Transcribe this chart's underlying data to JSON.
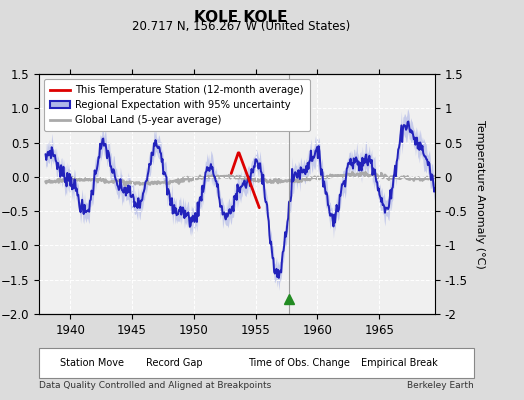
{
  "title": "KOLE KOLE",
  "subtitle": "20.717 N, 156.267 W (United States)",
  "xlabel_bottom": "Data Quality Controlled and Aligned at Breakpoints",
  "xlabel_right": "Berkeley Earth",
  "ylabel": "Temperature Anomaly (°C)",
  "xlim": [
    1937.5,
    1969.5
  ],
  "ylim": [
    -2.0,
    1.5
  ],
  "yticks": [
    -2.0,
    -1.5,
    -1.0,
    -0.5,
    0.0,
    0.5,
    1.0,
    1.5
  ],
  "xticks": [
    1940,
    1945,
    1950,
    1955,
    1960,
    1965
  ],
  "background_color": "#dcdcdc",
  "plot_bg_color": "#f0f0f0",
  "grid_color": "#ffffff",
  "obs_change_line_x": 1957.7,
  "obs_change_marker_x": 1957.7,
  "blue_line_color": "#2222bb",
  "blue_fill_color": "#b0b8e8",
  "red_line_color": "#dd0000",
  "gray_line_color": "#aaaaaa",
  "legend_labels": [
    "This Temperature Station (12-month average)",
    "Regional Expectation with 95% uncertainty",
    "Global Land (5-year average)"
  ],
  "bottom_legend": [
    {
      "marker": "D",
      "color": "#cc0000",
      "label": "Station Move"
    },
    {
      "marker": "^",
      "color": "#228B22",
      "label": "Record Gap"
    },
    {
      "marker": "v",
      "color": "#2222bb",
      "label": "Time of Obs. Change"
    },
    {
      "marker": "s",
      "color": "#333333",
      "label": "Empirical Break"
    }
  ]
}
